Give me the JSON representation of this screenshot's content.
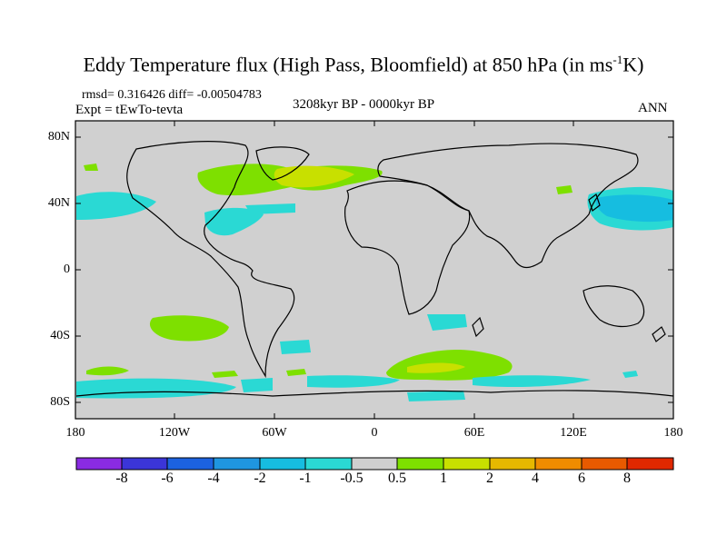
{
  "title_main": "Eddy Temperature flux (High Pass, Bloomfield) at 850 hPa (in ms",
  "title_sup": "-1",
  "title_end": "K)",
  "stats": "rmsd= 0.316426 diff= -0.00504783",
  "expt": "Expt = tEwTo-tevta",
  "period": "3208kyr BP - 0000kyr BP",
  "season": "ANN",
  "lat_ticks": [
    "80N",
    "40N",
    "0",
    "40S",
    "80S"
  ],
  "lon_ticks": [
    "180",
    "120W",
    "60W",
    "0",
    "60E",
    "120E",
    "180"
  ],
  "colorbar": {
    "labels": [
      "-8",
      "-6",
      "-4",
      "-2",
      "-1",
      "-0.5",
      "0.5",
      "1",
      "2",
      "4",
      "6",
      "8"
    ],
    "colors": [
      "#8a2be2",
      "#3b35d8",
      "#1c62e0",
      "#1f96e0",
      "#16bde0",
      "#2ad9d4",
      "#cfcfcf",
      "#7ee000",
      "#c8e000",
      "#e6b800",
      "#ef8c00",
      "#e85a00",
      "#e02800"
    ]
  },
  "colors": {
    "background": "#d0d0d0",
    "positive_1": "#7ee000",
    "positive_2": "#c8e000",
    "negative_1": "#2ad9d4",
    "negative_2": "#16bde0"
  }
}
